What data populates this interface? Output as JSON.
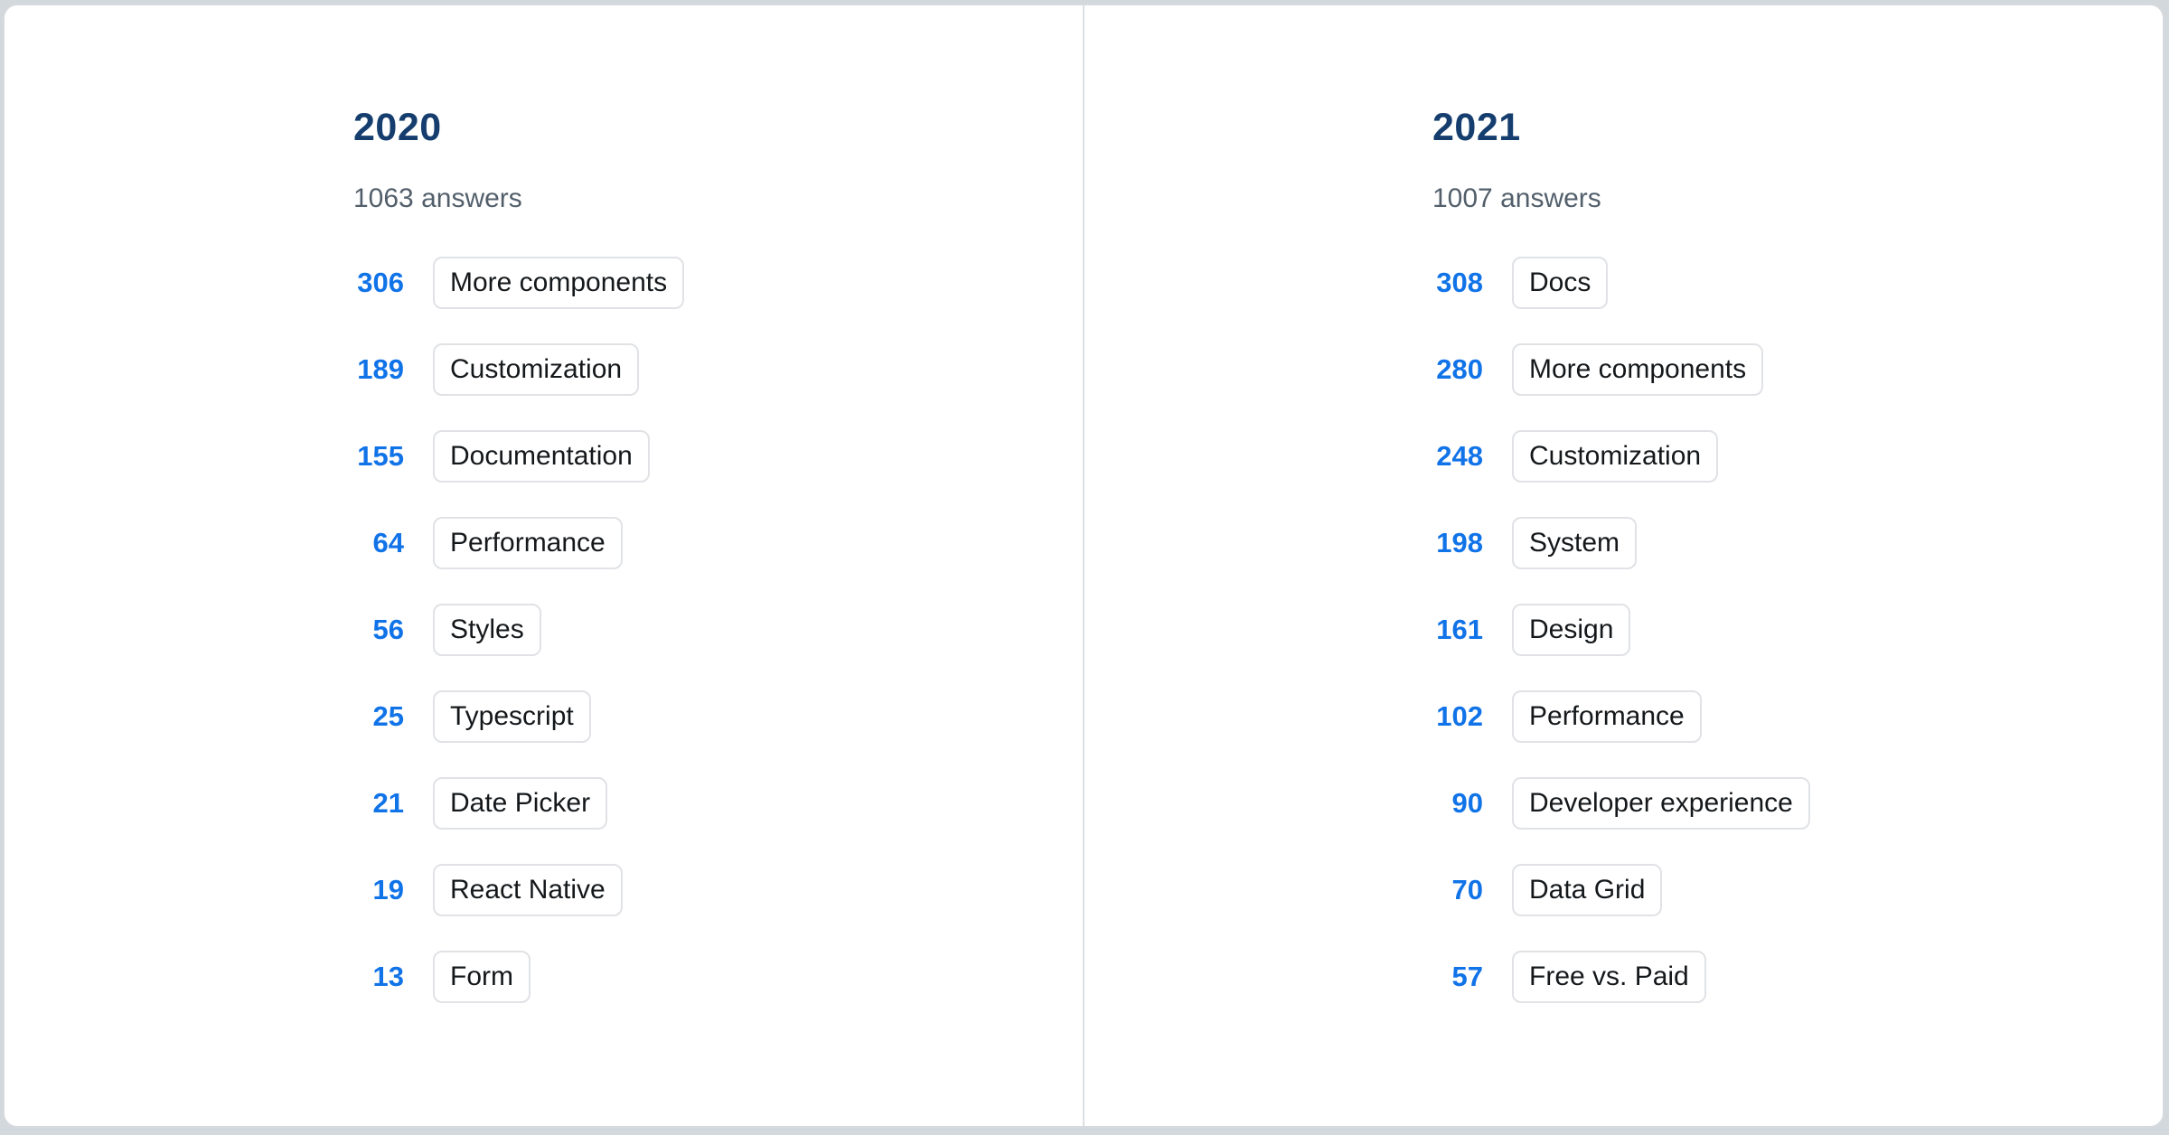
{
  "page_background": "#d3d8dd",
  "card": {
    "background": "#ffffff",
    "border_color": "#d6dade",
    "divider_color": "#dcdfe2"
  },
  "colors": {
    "year_heading": "#153e6f",
    "count_blue": "#1173e8",
    "answers_gray": "#525f6b",
    "chip_text": "#15181b",
    "chip_border": "#e0e2e5"
  },
  "columns": [
    {
      "year": "2020",
      "answers": "1063 answers",
      "items": [
        {
          "count": "306",
          "label": "More components"
        },
        {
          "count": "189",
          "label": "Customization"
        },
        {
          "count": "155",
          "label": "Documentation"
        },
        {
          "count": "64",
          "label": "Performance"
        },
        {
          "count": "56",
          "label": "Styles"
        },
        {
          "count": "25",
          "label": "Typescript"
        },
        {
          "count": "21",
          "label": "Date Picker"
        },
        {
          "count": "19",
          "label": "React Native"
        },
        {
          "count": "13",
          "label": "Form"
        }
      ]
    },
    {
      "year": "2021",
      "answers": "1007 answers",
      "items": [
        {
          "count": "308",
          "label": "Docs"
        },
        {
          "count": "280",
          "label": "More components"
        },
        {
          "count": "248",
          "label": "Customization"
        },
        {
          "count": "198",
          "label": "System"
        },
        {
          "count": "161",
          "label": "Design"
        },
        {
          "count": "102",
          "label": "Performance"
        },
        {
          "count": "90",
          "label": "Developer experience"
        },
        {
          "count": "70",
          "label": "Data Grid"
        },
        {
          "count": "57",
          "label": "Free vs. Paid"
        }
      ]
    }
  ],
  "chart_data": [
    {
      "type": "table",
      "title": "2020",
      "subtitle": "1063 answers",
      "categories": [
        "More components",
        "Customization",
        "Documentation",
        "Performance",
        "Styles",
        "Typescript",
        "Date Picker",
        "React Native",
        "Form"
      ],
      "values": [
        306,
        189,
        155,
        64,
        56,
        25,
        21,
        19,
        13
      ]
    },
    {
      "type": "table",
      "title": "2021",
      "subtitle": "1007 answers",
      "categories": [
        "Docs",
        "More components",
        "Customization",
        "System",
        "Design",
        "Performance",
        "Developer experience",
        "Data Grid",
        "Free vs. Paid"
      ],
      "values": [
        308,
        280,
        248,
        198,
        161,
        102,
        90,
        70,
        57
      ]
    }
  ]
}
